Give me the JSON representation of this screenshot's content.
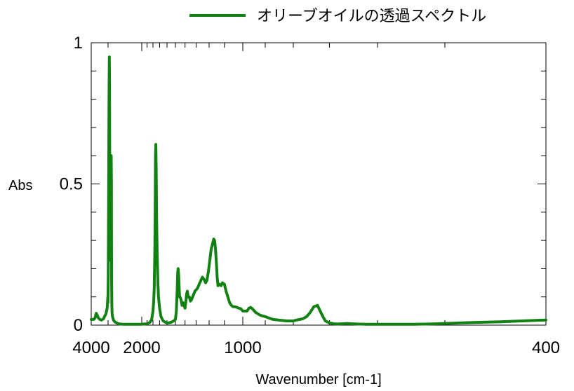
{
  "chart_data": {
    "type": "line",
    "title": "",
    "xlabel": "Wavenumber [cm-1]",
    "ylabel": "Abs",
    "xlim": [
      4000,
      400
    ],
    "x_axis_scale": "reciprocal",
    "ylim": [
      0,
      1
    ],
    "x_tick_labels": [
      "4000",
      "2000",
      "1000",
      "400"
    ],
    "x_tick_values": [
      4000,
      2000,
      1000,
      400
    ],
    "y_tick_labels": [
      "0",
      "0.5",
      "1"
    ],
    "y_tick_values": [
      0,
      0.5,
      1
    ],
    "grid": false,
    "legend_position": "top",
    "series": [
      {
        "name": "オリーブオイルの透過スペクトル",
        "color": "#118211",
        "x": [
          4000,
          3909,
          3817,
          3720,
          3640,
          3574,
          3500,
          3420,
          3330,
          3220,
          3100,
          3040,
          3010,
          3005,
          2990,
          2975,
          2960,
          2945,
          2935,
          2928,
          2922,
          2915,
          2905,
          2890,
          2875,
          2865,
          2858,
          2853,
          2848,
          2840,
          2830,
          2815,
          2800,
          2760,
          2700,
          2600,
          2450,
          2300,
          2150,
          2000,
          1900,
          1850,
          1820,
          1800,
          1790,
          1780,
          1770,
          1765,
          1760,
          1755,
          1750,
          1743,
          1735,
          1725,
          1715,
          1700,
          1680,
          1650,
          1600,
          1550,
          1520,
          1500,
          1490,
          1480,
          1475,
          1470,
          1465,
          1460,
          1455,
          1450,
          1440,
          1430,
          1420,
          1410,
          1400,
          1390,
          1385,
          1378,
          1370,
          1360,
          1350,
          1340,
          1330,
          1320,
          1310,
          1290,
          1270,
          1250,
          1235,
          1225,
          1215,
          1205,
          1195,
          1185,
          1175,
          1168,
          1162,
          1156,
          1150,
          1145,
          1140,
          1130,
          1120,
          1112,
          1100,
          1090,
          1080,
          1070,
          1060,
          1050,
          1040,
          1030,
          1020,
          1010,
          1000,
          990,
          980,
          970,
          963,
          955,
          940,
          920,
          900,
          870,
          850,
          820,
          800,
          790,
          780,
          770,
          760,
          750,
          740,
          730,
          723,
          716,
          710,
          700,
          690,
          680,
          670,
          660,
          640,
          620,
          600,
          580,
          560,
          540,
          520,
          500,
          480,
          460,
          440,
          420,
          400
        ],
        "y": [
          0.02,
          0.02,
          0.02,
          0.025,
          0.042,
          0.035,
          0.025,
          0.02,
          0.018,
          0.022,
          0.04,
          0.06,
          0.1,
          0.08,
          0.17,
          0.45,
          0.78,
          0.95,
          0.85,
          0.55,
          0.3,
          0.23,
          0.3,
          0.45,
          0.57,
          0.6,
          0.5,
          0.3,
          0.15,
          0.07,
          0.04,
          0.03,
          0.025,
          0.015,
          0.01,
          0.005,
          0.003,
          0.003,
          0.003,
          0.003,
          0.005,
          0.01,
          0.02,
          0.05,
          0.08,
          0.13,
          0.27,
          0.42,
          0.6,
          0.64,
          0.55,
          0.38,
          0.25,
          0.15,
          0.1,
          0.06,
          0.03,
          0.015,
          0.007,
          0.01,
          0.015,
          0.02,
          0.05,
          0.13,
          0.19,
          0.2,
          0.18,
          0.13,
          0.1,
          0.1,
          0.09,
          0.07,
          0.08,
          0.07,
          0.06,
          0.09,
          0.11,
          0.12,
          0.1,
          0.1,
          0.085,
          0.09,
          0.1,
          0.11,
          0.12,
          0.13,
          0.15,
          0.17,
          0.16,
          0.15,
          0.16,
          0.19,
          0.23,
          0.27,
          0.29,
          0.305,
          0.3,
          0.27,
          0.22,
          0.17,
          0.14,
          0.145,
          0.14,
          0.15,
          0.145,
          0.12,
          0.1,
          0.08,
          0.07,
          0.065,
          0.065,
          0.063,
          0.06,
          0.058,
          0.05,
          0.05,
          0.05,
          0.06,
          0.063,
          0.058,
          0.045,
          0.035,
          0.03,
          0.02,
          0.018,
          0.015,
          0.015,
          0.018,
          0.02,
          0.023,
          0.03,
          0.045,
          0.065,
          0.07,
          0.05,
          0.03,
          0.015,
          0.008,
          0.005,
          0.004,
          0.005,
          0.006,
          0.004,
          0.003,
          0.003,
          0.003,
          0.003,
          0.003,
          0.004,
          0.006,
          0.008,
          0.01,
          0.012,
          0.015,
          0.018
        ]
      }
    ]
  }
}
